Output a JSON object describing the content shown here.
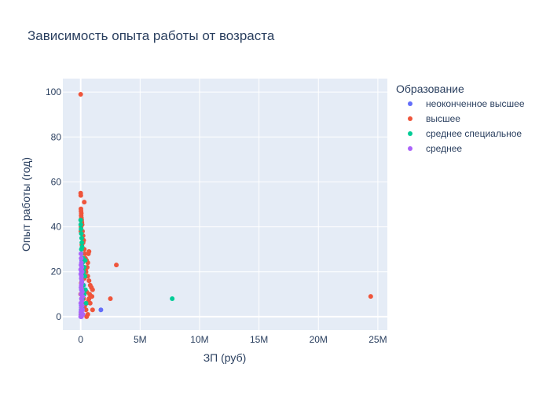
{
  "chart_data": {
    "type": "scatter",
    "title": "Зависимость опыта работы от возраста",
    "xlabel": "ЗП (руб)",
    "ylabel": "Опыт работы (год)",
    "xlim": [
      -1500000,
      25800000
    ],
    "ylim": [
      -6,
      106
    ],
    "x_ticks": [
      0,
      5000000,
      10000000,
      15000000,
      20000000,
      25000000
    ],
    "x_tick_labels": [
      "0",
      "5M",
      "10M",
      "15M",
      "20M",
      "25M"
    ],
    "y_ticks": [
      0,
      20,
      40,
      60,
      80,
      100
    ],
    "y_tick_labels": [
      "0",
      "20",
      "40",
      "60",
      "80",
      "100"
    ],
    "grid": true,
    "legend_title": "Образование",
    "legend_position": "right",
    "series": [
      {
        "name": "неоконченное высшее",
        "color": "#636efa",
        "points": [
          [
            30000,
            2
          ],
          [
            50000,
            5
          ],
          [
            80000,
            8
          ],
          [
            120000,
            10
          ],
          [
            60000,
            12
          ],
          [
            100000,
            15
          ],
          [
            200000,
            18
          ],
          [
            150000,
            6
          ],
          [
            40000,
            3
          ],
          [
            300000,
            4
          ],
          [
            500000,
            6
          ],
          [
            1700000,
            3
          ],
          [
            70000,
            20
          ],
          [
            90000,
            25
          ],
          [
            20000,
            1
          ],
          [
            180000,
            9
          ],
          [
            250000,
            14
          ],
          [
            110000,
            22
          ],
          [
            60000,
            28
          ]
        ]
      },
      {
        "name": "высшее",
        "color": "#ef553b",
        "points": [
          [
            0,
            99
          ],
          [
            0,
            55
          ],
          [
            10000,
            54
          ],
          [
            20000,
            48
          ],
          [
            30000,
            47
          ],
          [
            50000,
            46
          ],
          [
            40000,
            45
          ],
          [
            60000,
            44
          ],
          [
            80000,
            43
          ],
          [
            100000,
            42
          ],
          [
            120000,
            41
          ],
          [
            30000,
            40
          ],
          [
            150000,
            38
          ],
          [
            200000,
            36
          ],
          [
            250000,
            34
          ],
          [
            100000,
            32
          ],
          [
            300000,
            30
          ],
          [
            350000,
            28
          ],
          [
            400000,
            26
          ],
          [
            500000,
            25
          ],
          [
            600000,
            24
          ],
          [
            700000,
            29
          ],
          [
            650000,
            28
          ],
          [
            550000,
            22
          ],
          [
            450000,
            20
          ],
          [
            600000,
            18
          ],
          [
            700000,
            16
          ],
          [
            800000,
            14
          ],
          [
            900000,
            13
          ],
          [
            1000000,
            12
          ],
          [
            750000,
            10
          ],
          [
            850000,
            9
          ],
          [
            950000,
            9
          ],
          [
            700000,
            8
          ],
          [
            800000,
            6
          ],
          [
            1000000,
            3
          ],
          [
            600000,
            1
          ],
          [
            500000,
            0
          ],
          [
            400000,
            21
          ],
          [
            200000,
            20
          ],
          [
            100000,
            18
          ],
          [
            50000,
            15
          ],
          [
            150000,
            12
          ],
          [
            250000,
            8
          ],
          [
            350000,
            5
          ],
          [
            450000,
            3
          ],
          [
            3000000,
            23
          ],
          [
            2500000,
            8
          ],
          [
            24400000,
            9
          ],
          [
            300000,
            51
          ],
          [
            200000,
            33
          ],
          [
            500000,
            11
          ],
          [
            650000,
            7
          ],
          [
            300000,
            17
          ],
          [
            0,
            10
          ],
          [
            80000,
            6
          ],
          [
            120000,
            3
          ],
          [
            60000,
            1
          ],
          [
            20000,
            38
          ]
        ]
      },
      {
        "name": "среднее специальное",
        "color": "#00cc96",
        "points": [
          [
            7700000,
            8
          ],
          [
            0,
            43
          ],
          [
            10000,
            41
          ],
          [
            30000,
            39
          ],
          [
            50000,
            37
          ],
          [
            80000,
            35
          ],
          [
            100000,
            33
          ],
          [
            120000,
            31
          ],
          [
            60000,
            30
          ],
          [
            40000,
            28
          ],
          [
            200000,
            26
          ],
          [
            150000,
            24
          ],
          [
            300000,
            22
          ],
          [
            250000,
            20
          ],
          [
            350000,
            18
          ],
          [
            100000,
            16
          ],
          [
            200000,
            14
          ],
          [
            400000,
            12
          ],
          [
            300000,
            10
          ],
          [
            150000,
            8
          ],
          [
            450000,
            6
          ],
          [
            80000,
            4
          ],
          [
            50000,
            2
          ],
          [
            20000,
            0
          ],
          [
            380000,
            25
          ]
        ]
      },
      {
        "name": "среднее",
        "color": "#ab63fa",
        "points": [
          [
            0,
            0
          ],
          [
            20000,
            2
          ],
          [
            40000,
            4
          ],
          [
            10000,
            6
          ],
          [
            60000,
            8
          ],
          [
            30000,
            10
          ],
          [
            80000,
            12
          ],
          [
            50000,
            14
          ],
          [
            100000,
            16
          ],
          [
            70000,
            18
          ],
          [
            120000,
            20
          ],
          [
            90000,
            22
          ],
          [
            60000,
            24
          ],
          [
            40000,
            26
          ],
          [
            20000,
            28
          ],
          [
            100000,
            1
          ],
          [
            150000,
            3
          ],
          [
            130000,
            5
          ],
          [
            110000,
            7
          ],
          [
            170000,
            9
          ],
          [
            140000,
            11
          ],
          [
            30000,
            13
          ],
          [
            80000,
            15
          ],
          [
            50000,
            17
          ],
          [
            10000,
            19
          ],
          [
            0,
            21
          ],
          [
            25000,
            23
          ],
          [
            160000,
            3
          ],
          [
            190000,
            1
          ],
          [
            70000,
            0
          ]
        ]
      }
    ]
  }
}
